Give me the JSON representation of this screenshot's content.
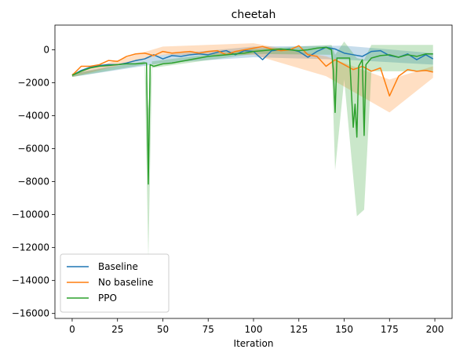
{
  "chart_data": {
    "type": "line",
    "title": "cheetah",
    "xlabel": "Iteration",
    "ylabel": "",
    "xlim": [
      -9.5,
      209.5
    ],
    "ylim": [
      -16300,
      1500
    ],
    "xticks": [
      0,
      25,
      50,
      75,
      100,
      125,
      150,
      175,
      200
    ],
    "yticks": [
      0,
      -2000,
      -4000,
      -6000,
      -8000,
      -10000,
      -12000,
      -14000,
      -16000
    ],
    "xtick_labels": [
      "0",
      "25",
      "50",
      "75",
      "100",
      "125",
      "150",
      "175",
      "200"
    ],
    "ytick_labels": [
      "0",
      "−2000",
      "−4000",
      "−6000",
      "−8000",
      "−10000",
      "−12000",
      "−14000",
      "−16000"
    ],
    "grid": false,
    "legend_position": "lower-left",
    "series": [
      {
        "name": "Baseline",
        "color": "#1f77b4",
        "band_color": "#1f77b4",
        "points": [
          [
            0,
            -1550
          ],
          [
            5,
            -1250
          ],
          [
            10,
            -1050
          ],
          [
            15,
            -950
          ],
          [
            20,
            -900
          ],
          [
            25,
            -900
          ],
          [
            30,
            -800
          ],
          [
            35,
            -650
          ],
          [
            40,
            -550
          ],
          [
            45,
            -300
          ],
          [
            50,
            -550
          ],
          [
            55,
            -350
          ],
          [
            60,
            -400
          ],
          [
            65,
            -300
          ],
          [
            70,
            -250
          ],
          [
            75,
            -300
          ],
          [
            80,
            -150
          ],
          [
            85,
            -50
          ],
          [
            90,
            -300
          ],
          [
            95,
            -50
          ],
          [
            100,
            -100
          ],
          [
            105,
            -600
          ],
          [
            110,
            -50
          ],
          [
            115,
            0
          ],
          [
            120,
            50
          ],
          [
            125,
            -100
          ],
          [
            130,
            -450
          ],
          [
            135,
            -100
          ],
          [
            140,
            150
          ],
          [
            145,
            50
          ],
          [
            150,
            -200
          ],
          [
            155,
            -300
          ],
          [
            160,
            -400
          ],
          [
            165,
            -100
          ],
          [
            170,
            -50
          ],
          [
            175,
            -350
          ],
          [
            180,
            -450
          ],
          [
            185,
            -250
          ],
          [
            190,
            -600
          ],
          [
            195,
            -300
          ],
          [
            199,
            -550
          ]
        ],
        "band": [
          [
            0,
            -1650,
            -1450
          ],
          [
            50,
            -800,
            -300
          ],
          [
            100,
            -450,
            200
          ],
          [
            150,
            -600,
            250
          ],
          [
            199,
            -900,
            -200
          ]
        ]
      },
      {
        "name": "No baseline",
        "color": "#ff7f0e",
        "band_color": "#ff7f0e",
        "points": [
          [
            0,
            -1550
          ],
          [
            5,
            -1000
          ],
          [
            10,
            -1000
          ],
          [
            15,
            -900
          ],
          [
            20,
            -650
          ],
          [
            25,
            -700
          ],
          [
            30,
            -400
          ],
          [
            35,
            -250
          ],
          [
            40,
            -200
          ],
          [
            45,
            -350
          ],
          [
            50,
            -100
          ],
          [
            55,
            -200
          ],
          [
            60,
            -150
          ],
          [
            65,
            -100
          ],
          [
            70,
            -200
          ],
          [
            75,
            -100
          ],
          [
            80,
            -50
          ],
          [
            85,
            -300
          ],
          [
            90,
            -100
          ],
          [
            95,
            0
          ],
          [
            100,
            100
          ],
          [
            105,
            200
          ],
          [
            110,
            50
          ],
          [
            115,
            -50
          ],
          [
            120,
            0
          ],
          [
            125,
            250
          ],
          [
            130,
            -300
          ],
          [
            135,
            -400
          ],
          [
            140,
            -1000
          ],
          [
            145,
            -600
          ],
          [
            150,
            -900
          ],
          [
            155,
            -1200
          ],
          [
            160,
            -1000
          ],
          [
            165,
            -1300
          ],
          [
            170,
            -1100
          ],
          [
            175,
            -2800
          ],
          [
            180,
            -1600
          ],
          [
            185,
            -1200
          ],
          [
            190,
            -1300
          ],
          [
            195,
            -1250
          ],
          [
            199,
            -1350
          ]
        ],
        "band": [
          [
            0,
            -1650,
            -1450
          ],
          [
            50,
            -300,
            200
          ],
          [
            100,
            -300,
            400
          ],
          [
            140,
            -1600,
            -400
          ],
          [
            175,
            -3800,
            -1800
          ],
          [
            199,
            -1700,
            -1000
          ]
        ]
      },
      {
        "name": "PPO",
        "color": "#2ca02c",
        "band_color": "#2ca02c",
        "points": [
          [
            0,
            -1550
          ],
          [
            5,
            -1300
          ],
          [
            10,
            -1100
          ],
          [
            15,
            -1000
          ],
          [
            20,
            -950
          ],
          [
            25,
            -900
          ],
          [
            30,
            -850
          ],
          [
            35,
            -850
          ],
          [
            40,
            -800
          ],
          [
            41,
            -800
          ],
          [
            42,
            -8150
          ],
          [
            43,
            -900
          ],
          [
            45,
            -1000
          ],
          [
            50,
            -850
          ],
          [
            55,
            -800
          ],
          [
            60,
            -700
          ],
          [
            65,
            -600
          ],
          [
            70,
            -500
          ],
          [
            75,
            -400
          ],
          [
            80,
            -350
          ],
          [
            85,
            -300
          ],
          [
            90,
            -250
          ],
          [
            95,
            -200
          ],
          [
            100,
            -100
          ],
          [
            105,
            -50
          ],
          [
            110,
            0
          ],
          [
            115,
            50
          ],
          [
            120,
            0
          ],
          [
            125,
            -50
          ],
          [
            130,
            0
          ],
          [
            135,
            100
          ],
          [
            140,
            150
          ],
          [
            143,
            0
          ],
          [
            144,
            -1200
          ],
          [
            145,
            -3800
          ],
          [
            146,
            -500
          ],
          [
            150,
            -500
          ],
          [
            153,
            -500
          ],
          [
            155,
            -4700
          ],
          [
            156,
            -3300
          ],
          [
            157,
            -5300
          ],
          [
            158,
            -1000
          ],
          [
            160,
            -600
          ],
          [
            161,
            -5200
          ],
          [
            162,
            -900
          ],
          [
            165,
            -500
          ],
          [
            170,
            -350
          ],
          [
            175,
            -300
          ],
          [
            180,
            -450
          ],
          [
            185,
            -300
          ],
          [
            190,
            -400
          ],
          [
            195,
            -250
          ],
          [
            199,
            -250
          ]
        ],
        "band": [
          [
            0,
            -1650,
            -1450
          ],
          [
            40,
            -900,
            -700
          ],
          [
            42,
            -12700,
            -3600
          ],
          [
            44,
            -1100,
            -700
          ],
          [
            100,
            -250,
            50
          ],
          [
            143,
            -300,
            300
          ],
          [
            145,
            -7300,
            -300
          ],
          [
            150,
            -1800,
            500
          ],
          [
            157,
            -10100,
            -500
          ],
          [
            161,
            -9700,
            -600
          ],
          [
            165,
            -1300,
            300
          ],
          [
            199,
            -1300,
            300
          ]
        ]
      }
    ]
  }
}
